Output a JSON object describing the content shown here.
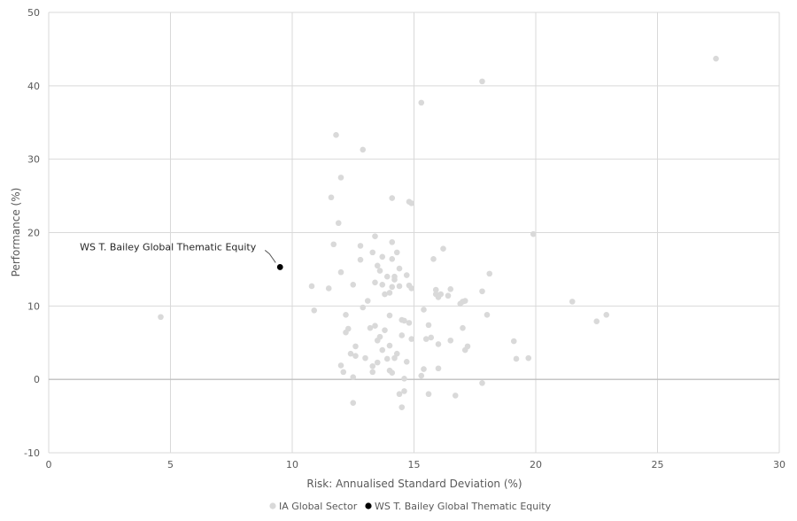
{
  "chart_data": {
    "type": "scatter",
    "xlabel": "Risk: Annualised Standard Deviation (%)",
    "ylabel": "Performance (%)",
    "xlim": [
      0,
      30
    ],
    "ylim": [
      -10,
      50
    ],
    "x_ticks": [
      0,
      5,
      10,
      15,
      20,
      25,
      30
    ],
    "y_ticks": [
      -10,
      0,
      10,
      20,
      30,
      40,
      50
    ],
    "grid": true,
    "legend_position": "bottom",
    "series": [
      {
        "name": "IA Global Sector",
        "color": "#d9d9d9",
        "points": [
          [
            4.6,
            8.5
          ],
          [
            10.8,
            12.7
          ],
          [
            10.9,
            9.4
          ],
          [
            11.5,
            12.4
          ],
          [
            11.6,
            24.8
          ],
          [
            11.7,
            18.4
          ],
          [
            11.8,
            33.3
          ],
          [
            11.9,
            21.3
          ],
          [
            12.0,
            27.5
          ],
          [
            12.0,
            14.6
          ],
          [
            12.0,
            1.9
          ],
          [
            12.1,
            1.0
          ],
          [
            12.2,
            8.8
          ],
          [
            12.2,
            6.4
          ],
          [
            12.3,
            6.9
          ],
          [
            12.4,
            3.5
          ],
          [
            12.5,
            0.3
          ],
          [
            12.5,
            -3.2
          ],
          [
            12.5,
            12.9
          ],
          [
            12.6,
            3.2
          ],
          [
            12.6,
            4.5
          ],
          [
            12.8,
            18.2
          ],
          [
            12.8,
            16.3
          ],
          [
            12.9,
            9.8
          ],
          [
            12.9,
            31.3
          ],
          [
            13.0,
            2.9
          ],
          [
            13.1,
            10.7
          ],
          [
            13.2,
            7.0
          ],
          [
            13.3,
            1.0
          ],
          [
            13.3,
            1.8
          ],
          [
            13.3,
            17.3
          ],
          [
            13.4,
            13.2
          ],
          [
            13.4,
            7.3
          ],
          [
            13.4,
            19.5
          ],
          [
            13.5,
            2.3
          ],
          [
            13.5,
            5.3
          ],
          [
            13.5,
            15.5
          ],
          [
            13.6,
            14.8
          ],
          [
            13.6,
            5.8
          ],
          [
            13.7,
            16.7
          ],
          [
            13.7,
            12.9
          ],
          [
            13.7,
            4.0
          ],
          [
            13.8,
            11.6
          ],
          [
            13.8,
            6.7
          ],
          [
            13.9,
            14.0
          ],
          [
            13.9,
            2.8
          ],
          [
            14.0,
            8.7
          ],
          [
            14.0,
            1.2
          ],
          [
            14.0,
            4.6
          ],
          [
            14.0,
            11.8
          ],
          [
            14.1,
            16.4
          ],
          [
            14.1,
            18.7
          ],
          [
            14.1,
            12.6
          ],
          [
            14.1,
            24.7
          ],
          [
            14.1,
            0.9
          ],
          [
            14.2,
            13.6
          ],
          [
            14.2,
            2.9
          ],
          [
            14.2,
            14.0
          ],
          [
            14.3,
            3.5
          ],
          [
            14.3,
            17.3
          ],
          [
            14.4,
            15.1
          ],
          [
            14.4,
            12.7
          ],
          [
            14.4,
            -2.0
          ],
          [
            14.5,
            -3.8
          ],
          [
            14.5,
            8.1
          ],
          [
            14.5,
            6.0
          ],
          [
            14.6,
            8.0
          ],
          [
            14.6,
            0.1
          ],
          [
            14.6,
            -1.6
          ],
          [
            14.7,
            14.2
          ],
          [
            14.7,
            2.4
          ],
          [
            14.8,
            24.2
          ],
          [
            14.8,
            12.8
          ],
          [
            14.8,
            7.7
          ],
          [
            14.9,
            24.0
          ],
          [
            14.9,
            12.4
          ],
          [
            14.9,
            5.5
          ],
          [
            15.3,
            37.7
          ],
          [
            15.3,
            0.5
          ],
          [
            15.4,
            9.5
          ],
          [
            15.4,
            1.4
          ],
          [
            15.5,
            5.5
          ],
          [
            15.6,
            7.4
          ],
          [
            15.6,
            -2.0
          ],
          [
            15.7,
            5.7
          ],
          [
            15.8,
            16.4
          ],
          [
            15.9,
            11.6
          ],
          [
            15.9,
            12.2
          ],
          [
            16.0,
            11.2
          ],
          [
            16.0,
            4.8
          ],
          [
            16.0,
            1.5
          ],
          [
            16.1,
            11.6
          ],
          [
            16.2,
            17.8
          ],
          [
            16.4,
            11.4
          ],
          [
            16.5,
            12.3
          ],
          [
            16.5,
            5.3
          ],
          [
            16.7,
            -2.2
          ],
          [
            16.9,
            10.3
          ],
          [
            17.0,
            7.0
          ],
          [
            17.0,
            10.6
          ],
          [
            17.1,
            10.7
          ],
          [
            17.1,
            4.0
          ],
          [
            17.2,
            4.5
          ],
          [
            17.8,
            40.6
          ],
          [
            17.8,
            12.0
          ],
          [
            17.8,
            -0.5
          ],
          [
            18.0,
            8.8
          ],
          [
            18.1,
            14.4
          ],
          [
            19.1,
            5.2
          ],
          [
            19.2,
            2.8
          ],
          [
            19.7,
            2.9
          ],
          [
            19.9,
            19.8
          ],
          [
            21.5,
            10.6
          ],
          [
            22.5,
            7.9
          ],
          [
            22.9,
            8.8
          ],
          [
            27.4,
            43.7
          ]
        ]
      },
      {
        "name": "WS T. Bailey Global Thematic Equity",
        "color": "#000000",
        "points": [
          [
            9.5,
            15.3
          ]
        ]
      }
    ],
    "annotations": [
      {
        "text": "WS T. Bailey Global Thematic Equity",
        "x": 9.5,
        "y": 15.3
      }
    ]
  }
}
